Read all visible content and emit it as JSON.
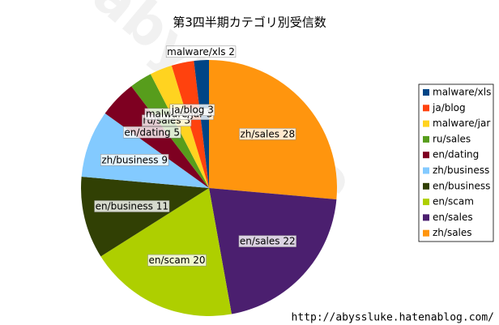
{
  "chart_data": {
    "type": "pie",
    "title": "第3四半期カテゴリ別受信数",
    "watermark": "@abyssluke",
    "footer": "http://abyssluke.hatenablog.com/",
    "categories": [
      "zh/sales",
      "en/sales",
      "en/scam",
      "en/business",
      "zh/business",
      "en/dating",
      "ru/sales",
      "malware/jar",
      "ja/blog",
      "malware/xls"
    ],
    "values": [
      28,
      22,
      20,
      11,
      9,
      5,
      3,
      3,
      3,
      2
    ],
    "value_labels": [
      "zh/sales 28",
      "en/sales 22",
      "en/scam 20",
      "en/business 11",
      "zh/business 9",
      "en/dating 5",
      "ru/sales 3",
      "malware/jar 3",
      "ja/blog 3",
      "malware/xls 2"
    ],
    "colors": [
      "#ff950e",
      "#4b1f6f",
      "#aecf00",
      "#314004",
      "#83caff",
      "#7e0021",
      "#579d1c",
      "#ffd320",
      "#ff420e",
      "#004586"
    ],
    "legend": "right"
  }
}
